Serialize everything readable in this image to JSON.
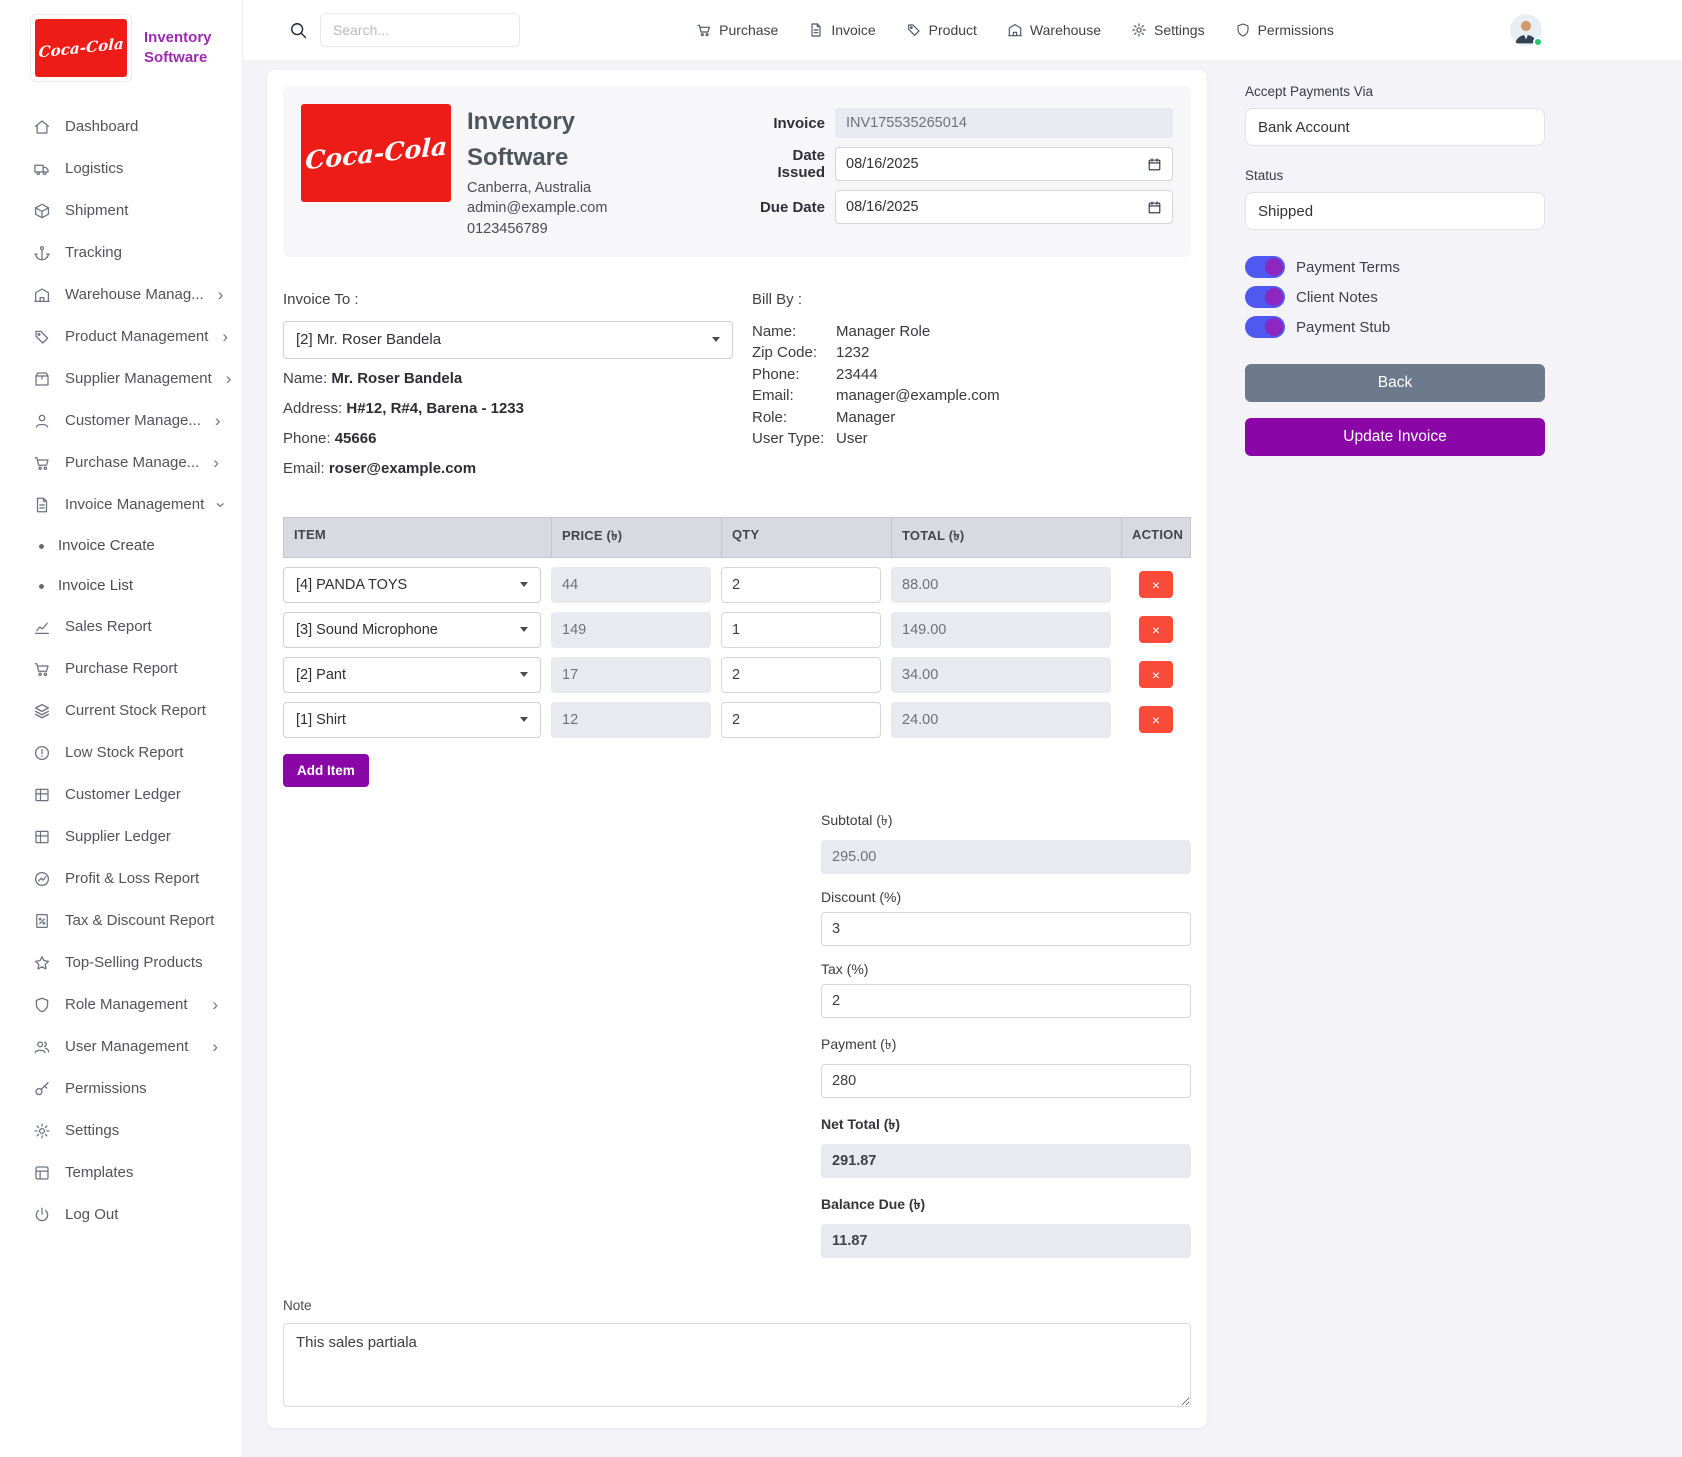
{
  "colors": {
    "accent": "#8a06a6",
    "brand": "#9d2bb0",
    "danger": "#fa4a3a",
    "cola_red": "#ee1c16",
    "back_btn": "#6d7a8b",
    "toggle_track": "#5058f2",
    "toggle_thumb": "#8d27c0",
    "status_green": "#27c46d"
  },
  "brand": {
    "logo_text": "Coca-Cola",
    "line1": "Inventory",
    "line2": "Software"
  },
  "topbar": {
    "search_placeholder": "Search...",
    "nav": [
      {
        "label": "Purchase",
        "icon": "cart"
      },
      {
        "label": "Invoice",
        "icon": "file"
      },
      {
        "label": "Product",
        "icon": "tag"
      },
      {
        "label": "Warehouse",
        "icon": "building"
      },
      {
        "label": "Settings",
        "icon": "gear"
      },
      {
        "label": "Permissions",
        "icon": "shield"
      }
    ]
  },
  "sidebar": [
    {
      "label": "Dashboard",
      "icon": "home"
    },
    {
      "label": "Logistics",
      "icon": "truck"
    },
    {
      "label": "Shipment",
      "icon": "box"
    },
    {
      "label": "Tracking",
      "icon": "anchor"
    },
    {
      "label": "Warehouse Manag...",
      "icon": "building",
      "chevron": "right"
    },
    {
      "label": "Product Management",
      "icon": "tag",
      "chevron": "right"
    },
    {
      "label": "Supplier Management",
      "icon": "package",
      "chevron": "right"
    },
    {
      "label": "Customer Manage...",
      "icon": "person",
      "chevron": "right"
    },
    {
      "label": "Purchase Manage...",
      "icon": "cart",
      "chevron": "right"
    },
    {
      "label": "Invoice Management",
      "icon": "file",
      "chevron": "down"
    },
    {
      "label": "Invoice Create",
      "sub": true
    },
    {
      "label": "Invoice List",
      "sub": true
    },
    {
      "label": "Sales Report",
      "icon": "chart"
    },
    {
      "label": "Purchase Report",
      "icon": "cart"
    },
    {
      "label": "Current Stock Report",
      "icon": "layers"
    },
    {
      "label": "Low Stock Report",
      "icon": "alert"
    },
    {
      "label": "Customer Ledger",
      "icon": "ledger"
    },
    {
      "label": "Supplier Ledger",
      "icon": "ledger"
    },
    {
      "label": "Profit & Loss Report",
      "icon": "pnl"
    },
    {
      "label": "Tax & Discount Report",
      "icon": "percent"
    },
    {
      "label": "Top-Selling Products",
      "icon": "star"
    },
    {
      "label": "Role Management",
      "icon": "shield",
      "chevron": "right"
    },
    {
      "label": "User Management",
      "icon": "users",
      "chevron": "right"
    },
    {
      "label": "Permissions",
      "icon": "key"
    },
    {
      "label": "Settings",
      "icon": "gear"
    },
    {
      "label": "Templates",
      "icon": "template"
    },
    {
      "label": "Log Out",
      "icon": "power"
    }
  ],
  "invoice_header": {
    "company_line1": "Inventory",
    "company_line2": "Software",
    "location": "Canberra, Australia",
    "email": "admin@example.com",
    "phone": "0123456789",
    "invoice_label": "Invoice",
    "invoice_number": "INV175535265014",
    "date_issued_label": "Date Issued",
    "date_issued": "08/16/2025",
    "due_date_label": "Due Date",
    "due_date": "08/16/2025"
  },
  "invoice_to": {
    "title": "Invoice To :",
    "selected": "[2] Mr. Roser Bandela",
    "name_label": "Name:",
    "name": "Mr. Roser Bandela",
    "address_label": "Address:",
    "address": "H#12, R#4, Barena - 1233",
    "phone_label": "Phone:",
    "phone": "45666",
    "email_label": "Email:",
    "email": "roser@example.com"
  },
  "bill_by": {
    "title": "Bill By :",
    "rows": [
      {
        "label": "Name:",
        "value": "Manager Role"
      },
      {
        "label": "Zip Code:",
        "value": "1232"
      },
      {
        "label": "Phone:",
        "value": "23444"
      },
      {
        "label": "Email:",
        "value": "manager@example.com"
      },
      {
        "label": "Role:",
        "value": "Manager"
      },
      {
        "label": "User Type:",
        "value": "User"
      }
    ]
  },
  "items_table": {
    "headers": [
      "ITEM",
      "PRICE (৳)",
      "QTY",
      "TOTAL (৳)",
      "ACTION"
    ],
    "rows": [
      {
        "item": "[4] PANDA TOYS",
        "price": "44",
        "qty": "2",
        "total": "88.00"
      },
      {
        "item": "[3] Sound Microphone",
        "price": "149",
        "qty": "1",
        "total": "149.00"
      },
      {
        "item": "[2] Pant",
        "price": "17",
        "qty": "2",
        "total": "34.00"
      },
      {
        "item": "[1] Shirt",
        "price": "12",
        "qty": "2",
        "total": "24.00"
      }
    ],
    "delete_label": "×",
    "add_item_label": "Add Item"
  },
  "totals": {
    "subtotal_label": "Subtotal (৳)",
    "subtotal": "295.00",
    "discount_label": "Discount (%)",
    "discount": "3",
    "tax_label": "Tax (%)",
    "tax": "2",
    "payment_label": "Payment (৳)",
    "payment": "280",
    "net_total_label": "Net Total (৳)",
    "net_total": "291.87",
    "balance_due_label": "Balance Due (৳)",
    "balance_due": "11.87"
  },
  "note": {
    "label": "Note",
    "value": "This sales partiala"
  },
  "right_panel": {
    "accept_payments_label": "Accept Payments Via",
    "accept_payments_value": "Bank Account",
    "status_label": "Status",
    "status_value": "Shipped",
    "toggles": [
      {
        "label": "Payment Terms",
        "on": true
      },
      {
        "label": "Client Notes",
        "on": true
      },
      {
        "label": "Payment Stub",
        "on": true
      }
    ],
    "back_label": "Back",
    "update_label": "Update Invoice"
  }
}
